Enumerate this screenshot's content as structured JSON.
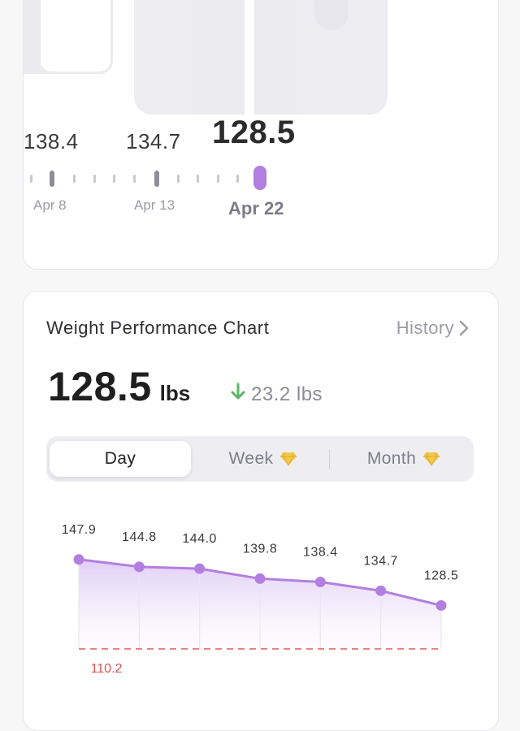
{
  "scale": {
    "values": [
      {
        "text": "138.4",
        "selected": false
      },
      {
        "text": "134.7",
        "selected": false
      },
      {
        "text": "128.5",
        "selected": true
      }
    ],
    "dates": [
      {
        "text": "Apr 8",
        "selected": false
      },
      {
        "text": "Apr 13",
        "selected": false
      },
      {
        "text": "Apr 22",
        "selected": true
      }
    ]
  },
  "chart_card": {
    "title": "Weight Performance Chart",
    "history_label": "History",
    "current_value": "128.5",
    "current_unit": "lbs",
    "change_text": "23.2 lbs",
    "change_direction": "down",
    "tabs": [
      {
        "label": "Day",
        "active": true,
        "premium": false
      },
      {
        "label": "Week",
        "active": false,
        "premium": true
      },
      {
        "label": "Month",
        "active": false,
        "premium": true
      }
    ]
  },
  "colors": {
    "accent": "#b27fe0",
    "down_arrow": "#59b563",
    "goal_line": "#d9534f",
    "premium_gem": "#f2c94c"
  },
  "chart_data": {
    "type": "area",
    "values": [
      147.9,
      144.8,
      144.0,
      139.8,
      138.4,
      134.7,
      128.5
    ],
    "value_labels": [
      "147.9",
      "144.8",
      "144.0",
      "139.8",
      "138.4",
      "134.7",
      "128.5"
    ],
    "goal": 110.2,
    "goal_label": "110.2",
    "grid": "vertical",
    "title": "",
    "xlabel": "",
    "ylabel": ""
  }
}
